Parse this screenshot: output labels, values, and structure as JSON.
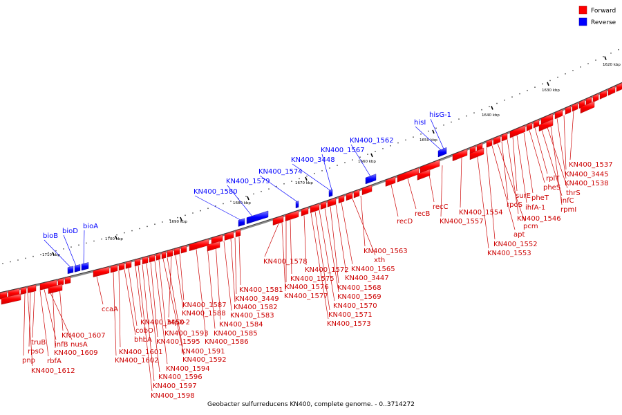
{
  "title": "Geobacter sulfurreducens KN400, complete genome. - 0..3714272",
  "legend": [
    {
      "label": "Forward",
      "color": "#ff0000"
    },
    {
      "label": "Reverse",
      "color": "#0000ff"
    }
  ],
  "colors": {
    "forward": "#ff0000",
    "reverse": "#0000ff",
    "backbone": "#808080"
  },
  "ticks": [
    "1620 kbp",
    "1630 kbp",
    "1640 kbp",
    "1650 kbp",
    "1660 kbp",
    "1670 kbp",
    "1680 kbp",
    "1690 kbp",
    "1700 kbp",
    "1710 kbp"
  ],
  "reverse_labels": [
    "bioB",
    "bioD",
    "bioA",
    "KN400_1580",
    "KN400_1579",
    "KN400_1574",
    "KN400_3448",
    "KN400_1567",
    "KN400_1562",
    "hisI",
    "hisG-1"
  ],
  "forward_labels": [
    "pnp",
    "rpsO",
    "truB",
    "rbfA",
    "infB",
    "nusA",
    "KN400_1612",
    "KN400_1609",
    "KN400_1607",
    "ccaA",
    "KN400_1602",
    "KN400_1601",
    "bhbA",
    "cobO",
    "KN400_3450",
    "KN400_1598",
    "KN400_1597",
    "KN400_1596",
    "KN400_1595",
    "KN400_1594",
    "KN400_1593",
    "KN400_1592",
    "KN400_1591",
    "htpX-2",
    "KN400_1588",
    "KN400_1587",
    "KN400_1586",
    "KN400_1585",
    "KN400_1584",
    "KN400_1583",
    "KN400_1582",
    "KN400_3449",
    "KN400_1581",
    "KN400_1578",
    "KN400_1577",
    "KN400_1576",
    "KN400_1575",
    "KN400_1572",
    "KN400_1573",
    "KN400_1571",
    "KN400_1570",
    "KN400_1569",
    "KN400_1568",
    "KN400_3447",
    "KN400_1565",
    "xth",
    "KN400_1563",
    "recD",
    "recB",
    "recC",
    "KN400_1557",
    "KN400_1554",
    "KN400_1553",
    "KN400_1552",
    "apt",
    "pcm",
    "rpoS",
    "KN400_1546",
    "surE",
    "ihfA-1",
    "pheT",
    "pheS",
    "rplT",
    "infC",
    "thrS",
    "rpmI",
    "KN400_1538",
    "KN400_3445",
    "KN400_1537"
  ]
}
